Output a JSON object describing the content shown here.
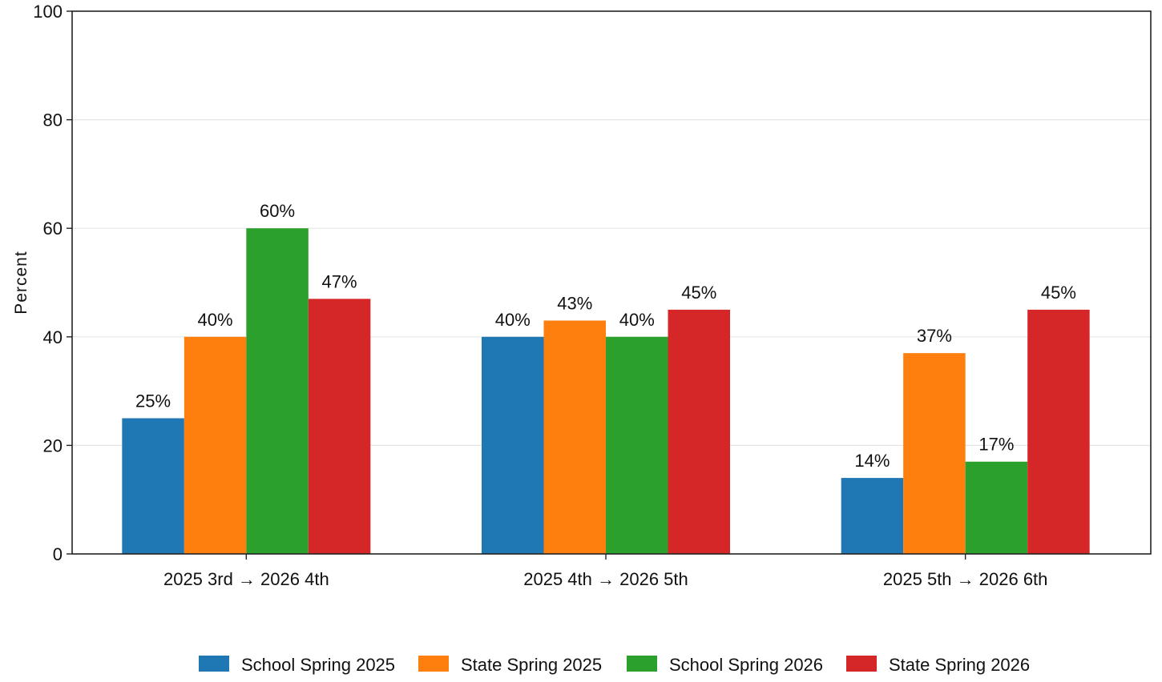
{
  "chart_data": {
    "type": "bar",
    "title": "",
    "xlabel": "",
    "ylabel": "Percent",
    "ylim": [
      0,
      100
    ],
    "yticks": [
      0,
      20,
      40,
      60,
      80,
      100
    ],
    "grid": "horizontal",
    "legend_position": "bottom-center",
    "categories": [
      "2025 3rd → 2026 4th",
      "2025 4th → 2026 5th",
      "2025 5th → 2026 6th"
    ],
    "series": [
      {
        "name": "School Spring 2025",
        "color": "#1f77b4",
        "values": [
          25,
          40,
          14
        ],
        "labels": [
          "25%",
          "40%",
          "14%"
        ]
      },
      {
        "name": "State Spring 2025",
        "color": "#ff7f0e",
        "values": [
          40,
          43,
          37
        ],
        "labels": [
          "40%",
          "43%",
          "37%"
        ]
      },
      {
        "name": "School Spring 2026",
        "color": "#2ca02c",
        "values": [
          60,
          40,
          17
        ],
        "labels": [
          "60%",
          "40%",
          "17%"
        ]
      },
      {
        "name": "State Spring 2026",
        "color": "#d62728",
        "values": [
          47,
          45,
          45
        ],
        "labels": [
          "47%",
          "45%",
          "45%"
        ]
      }
    ]
  }
}
